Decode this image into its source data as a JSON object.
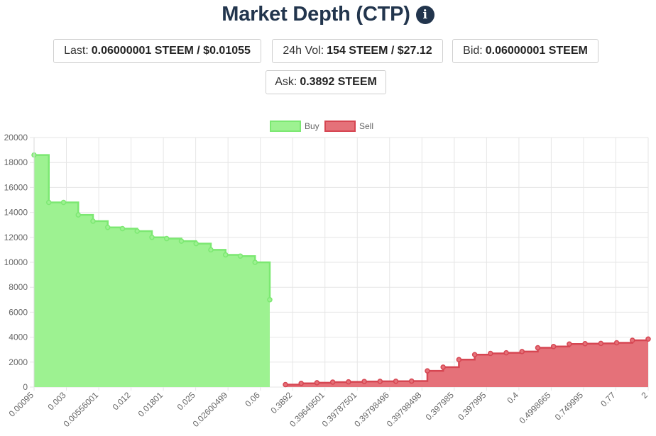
{
  "header": {
    "title": "Market Depth (CTP)",
    "info_icon": "info-circle-icon"
  },
  "stats": {
    "last_label": "Last:",
    "last_value": "0.06000001 STEEM / $0.01055",
    "vol_label": "24h Vol:",
    "vol_value": "154 STEEM / $27.12",
    "bid_label": "Bid:",
    "bid_value": "0.06000001 STEEM",
    "ask_label": "Ask:",
    "ask_value": "0.3892 STEEM"
  },
  "chart_data": {
    "type": "area",
    "legend_position": "top",
    "grid": true,
    "ylim": [
      0,
      20000
    ],
    "y_ticks": [
      0,
      2000,
      4000,
      6000,
      8000,
      10000,
      12000,
      14000,
      16000,
      18000,
      20000
    ],
    "x_tick_labels": [
      "0.00095",
      "0.003",
      "0.00556001",
      "0.012",
      "0.01801",
      "0.025",
      "0.02600499",
      "0.06",
      "0.3892",
      "0.39649501",
      "0.39787501",
      "0.39798496",
      "0.39798498",
      "0.397985",
      "0.397995",
      "0.4",
      "0.4998665",
      "0.749995",
      "0.77",
      "2"
    ],
    "series": [
      {
        "name": "Buy",
        "color": "#9df291",
        "border": "#7ce872",
        "values": [
          18600,
          14800,
          14800,
          13800,
          13300,
          12800,
          12700,
          12500,
          12000,
          11900,
          11700,
          11500,
          11000,
          10600,
          10500,
          10000,
          7000
        ]
      },
      {
        "name": "Sell",
        "color": "#e57179",
        "border": "#d64652",
        "values": [
          200,
          300,
          350,
          400,
          420,
          450,
          460,
          470,
          480,
          1300,
          1600,
          2200,
          2600,
          2700,
          2750,
          2850,
          3150,
          3250,
          3450,
          3480,
          3500,
          3550,
          3750,
          3850
        ]
      }
    ]
  }
}
